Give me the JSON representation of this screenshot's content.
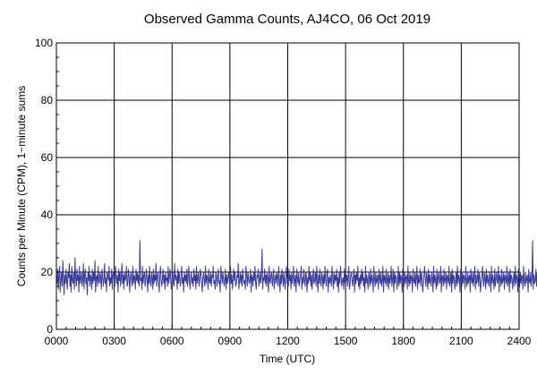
{
  "chart_data": {
    "type": "line",
    "title": "Observed Gamma Counts, AJ4CO, 06 Oct 2019",
    "xlabel": "Time (UTC)",
    "ylabel": "Counts per Minute (CPM), 1−minute sums",
    "xlim": [
      0,
      1440
    ],
    "ylim": [
      0,
      100
    ],
    "x_ticks": [
      {
        "value": 0,
        "label": "0000"
      },
      {
        "value": 180,
        "label": "0300"
      },
      {
        "value": 360,
        "label": "0600"
      },
      {
        "value": 540,
        "label": "0900"
      },
      {
        "value": 720,
        "label": "1200"
      },
      {
        "value": 900,
        "label": "1500"
      },
      {
        "value": 1080,
        "label": "1800"
      },
      {
        "value": 1260,
        "label": "2100"
      },
      {
        "value": 1440,
        "label": "2400"
      }
    ],
    "y_ticks": [
      {
        "value": 0,
        "label": "0"
      },
      {
        "value": 20,
        "label": "20"
      },
      {
        "value": 40,
        "label": "40"
      },
      {
        "value": 60,
        "label": "60"
      },
      {
        "value": 80,
        "label": "80"
      },
      {
        "value": 100,
        "label": "100"
      }
    ],
    "grid": true,
    "series": [
      {
        "color": "#3a3a9a",
        "x_start": 0,
        "x_step": 2,
        "values": [
          18,
          16,
          21,
          14,
          19,
          22,
          13,
          17,
          20,
          15,
          24,
          18,
          12,
          19,
          16,
          21,
          17,
          14,
          20,
          18,
          23,
          15,
          19,
          13,
          22,
          17,
          16,
          20,
          14,
          25,
          18,
          15,
          21,
          17,
          19,
          13,
          22,
          16,
          18,
          20,
          15,
          17,
          23,
          14,
          19,
          21,
          16,
          18,
          12,
          20,
          17,
          22,
          15,
          19,
          18,
          14,
          21,
          16,
          20,
          17,
          24,
          13,
          18,
          19,
          15,
          22,
          17,
          16,
          20,
          18,
          14,
          21,
          19,
          15,
          17,
          23,
          16,
          18,
          13,
          20,
          19,
          17,
          22,
          15,
          18,
          16,
          21,
          14,
          19,
          20,
          17,
          15,
          22,
          18,
          16,
          19,
          13,
          21,
          17,
          20,
          15,
          18,
          23,
          16,
          19,
          14,
          20,
          17,
          18,
          22,
          15,
          16,
          21,
          19,
          13,
          18,
          20,
          17,
          15,
          22,
          16,
          19,
          18,
          14,
          21,
          17,
          20,
          16,
          19,
          15,
          31,
          17,
          18,
          14,
          22,
          16,
          19,
          20,
          15,
          17,
          21,
          18,
          13,
          19,
          16,
          22,
          17,
          15,
          20,
          18,
          14,
          21,
          16,
          19,
          17,
          23,
          15,
          18,
          20,
          16,
          13,
          19,
          22,
          17,
          15,
          18,
          21,
          16,
          19,
          14,
          20,
          17,
          18,
          15,
          22,
          16,
          19,
          21,
          17,
          14,
          18,
          20,
          16,
          15,
          23,
          17,
          19,
          18,
          14,
          21,
          16,
          20,
          17,
          15,
          19,
          22,
          16,
          18,
          13,
          20,
          17,
          19,
          16,
          21,
          15,
          18,
          22,
          17,
          14,
          19,
          20,
          16,
          18,
          15,
          21,
          17,
          19,
          14,
          22,
          16,
          18,
          20,
          15,
          17,
          21,
          19,
          16,
          13,
          18,
          20,
          17,
          15,
          22,
          16,
          19,
          18,
          14,
          21,
          17,
          16,
          20,
          15,
          19,
          18,
          22,
          16,
          17,
          14,
          20,
          19,
          15,
          18,
          21,
          16,
          17,
          13,
          22,
          19,
          16,
          20,
          18,
          15,
          17,
          21,
          14,
          19,
          16,
          18,
          20,
          17,
          15,
          22,
          16,
          19,
          14,
          18,
          21,
          17,
          20,
          15,
          16,
          19,
          18,
          23,
          14,
          17,
          20,
          16,
          19,
          15,
          21,
          18,
          16,
          17,
          14,
          22,
          19,
          15,
          20,
          18,
          16,
          17,
          21,
          13,
          19,
          18,
          15,
          20,
          17,
          22,
          16,
          14,
          19,
          18,
          21,
          15,
          17,
          20,
          16,
          19,
          28,
          14,
          18,
          17,
          21,
          16,
          19,
          15,
          20,
          18,
          13,
          22,
          17,
          16,
          19,
          20,
          15,
          18,
          21,
          14,
          17,
          19,
          16,
          20,
          18,
          15,
          22,
          17,
          13,
          19,
          16,
          21,
          18,
          15,
          20,
          17,
          14,
          19,
          22,
          16,
          18,
          15,
          21,
          17,
          19,
          14,
          20,
          16,
          18,
          22,
          15,
          17,
          19,
          13,
          21,
          18,
          16,
          20,
          15,
          17,
          19,
          22,
          14,
          18,
          16,
          21,
          17,
          15,
          20,
          19,
          13,
          18,
          16,
          22,
          17,
          20,
          15,
          19,
          14,
          18,
          21,
          16,
          17,
          20,
          15,
          22,
          18,
          13,
          19,
          16,
          21,
          17,
          15,
          20,
          18,
          14,
          19,
          16,
          22,
          17,
          15,
          20,
          21,
          13,
          18,
          16,
          19,
          17,
          15,
          22,
          18,
          14,
          20,
          16,
          19,
          17,
          21,
          15,
          18,
          13,
          20,
          16,
          22,
          19,
          15,
          17,
          18,
          14,
          21,
          16,
          20,
          17,
          19,
          15,
          18,
          22,
          14,
          16,
          19,
          20,
          17,
          15,
          18,
          21,
          13,
          19,
          16,
          20,
          17,
          22,
          15,
          18,
          14,
          19,
          16,
          21,
          17,
          20,
          15,
          18,
          13,
          22,
          16,
          19,
          17,
          14,
          20,
          18,
          15,
          21,
          16,
          19,
          17,
          13,
          22,
          18,
          15,
          20,
          16,
          17,
          19,
          14,
          21,
          18,
          16,
          20,
          15,
          17,
          22,
          13,
          19,
          18,
          16,
          21,
          15,
          17,
          20,
          14,
          19,
          16,
          18,
          22,
          15,
          17,
          21,
          13,
          20,
          16,
          19,
          18,
          14,
          17,
          22,
          15,
          20,
          16,
          19,
          18,
          13,
          21,
          17,
          15,
          20,
          16,
          18,
          19,
          14,
          22,
          17,
          15,
          20,
          16,
          19,
          18,
          13,
          21,
          17,
          16,
          20,
          15,
          18,
          22,
          14,
          19,
          16,
          17,
          21,
          15,
          20,
          18,
          13,
          16,
          19,
          22,
          17,
          15,
          20,
          18,
          14,
          21,
          16,
          19,
          17,
          15,
          20,
          18,
          13,
          22,
          16,
          19,
          17,
          14,
          21,
          15,
          18,
          20,
          16,
          17,
          22,
          13,
          19,
          18,
          15,
          21,
          16,
          17,
          20,
          14,
          19,
          18,
          16,
          22,
          15,
          17,
          20,
          13,
          21,
          16,
          19,
          18,
          14,
          17,
          20,
          15,
          22,
          16,
          19,
          18,
          13,
          21,
          17,
          15,
          20,
          16,
          19,
          18,
          14,
          22,
          17,
          15,
          20,
          16,
          18,
          19,
          13,
          21,
          17,
          16,
          20,
          15,
          18,
          22,
          14,
          19,
          16,
          17,
          21,
          15,
          20,
          18,
          13,
          16,
          19,
          22,
          17,
          15,
          20,
          18,
          14,
          21,
          16,
          19,
          17,
          15,
          20,
          18,
          13,
          22,
          16,
          19,
          17,
          14,
          21,
          15,
          18,
          20,
          16,
          17,
          22,
          13,
          19,
          18,
          15,
          21,
          16,
          17,
          20,
          14,
          19,
          18,
          16,
          22,
          15,
          17,
          20,
          13,
          21,
          16,
          19,
          18,
          14,
          17,
          20,
          15,
          22,
          16,
          19,
          18,
          13,
          21,
          17,
          15,
          20,
          16,
          19,
          18,
          14,
          22,
          17,
          15,
          20,
          16,
          18,
          19,
          13,
          21,
          17,
          16,
          20,
          15,
          18,
          31,
          14,
          19,
          16,
          17,
          21,
          15,
          20,
          18,
          13,
          16,
          19,
          22,
          17,
          15,
          20,
          18,
          14,
          21,
          16,
          19,
          17,
          15,
          20,
          18,
          13,
          22,
          16,
          19,
          17,
          14,
          21,
          15,
          18,
          20,
          16,
          17,
          22,
          13,
          19,
          18,
          15,
          21,
          16,
          17,
          20,
          14,
          19,
          18,
          16,
          22,
          15,
          17,
          20,
          13,
          21,
          16,
          19,
          18,
          14,
          17,
          20,
          15,
          22,
          16,
          19,
          18,
          13,
          21,
          17,
          15,
          20,
          16,
          19,
          18,
          14,
          22,
          17,
          15,
          20,
          16,
          18,
          19,
          13,
          21,
          17,
          16,
          20,
          15,
          18,
          22,
          14,
          19,
          16,
          17,
          21,
          15,
          20,
          18,
          13,
          16,
          19,
          22,
          17,
          15,
          20,
          18,
          14,
          21,
          16,
          19,
          17,
          15,
          20,
          18,
          13,
          22,
          16,
          19,
          17,
          14,
          21,
          15,
          18,
          20,
          16,
          17,
          22,
          13,
          19,
          18,
          15,
          21,
          16,
          17,
          20,
          14,
          19,
          18,
          16,
          22,
          15,
          17,
          20,
          13,
          21,
          16,
          19,
          18,
          14,
          17,
          20,
          15,
          22,
          16,
          19,
          18
        ]
      }
    ]
  }
}
